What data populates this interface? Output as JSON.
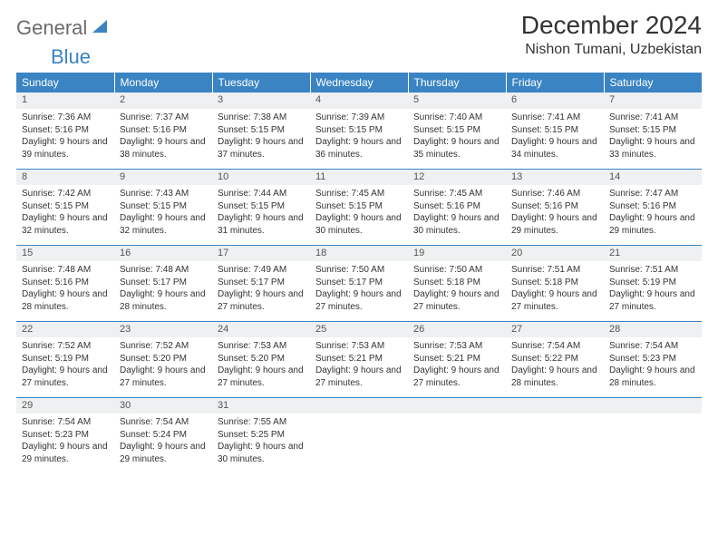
{
  "logo": {
    "word1": "General",
    "word2": "Blue"
  },
  "title": "December 2024",
  "location": "Nishon Tumani, Uzbekistan",
  "colors": {
    "header_bg": "#3a84c4",
    "header_text": "#ffffff",
    "daynum_bg": "#eef0f1",
    "border": "#3a84c4",
    "text": "#333333",
    "logo_gray": "#6b6b6b",
    "logo_blue": "#3a84c4"
  },
  "typography": {
    "title_fontsize": 28,
    "location_fontsize": 16,
    "dayheader_fontsize": 12,
    "daynum_fontsize": 11,
    "cell_fontsize": 10
  },
  "day_headers": [
    "Sunday",
    "Monday",
    "Tuesday",
    "Wednesday",
    "Thursday",
    "Friday",
    "Saturday"
  ],
  "weeks": [
    [
      {
        "n": "1",
        "sunrise": "Sunrise: 7:36 AM",
        "sunset": "Sunset: 5:16 PM",
        "daylight": "Daylight: 9 hours and 39 minutes."
      },
      {
        "n": "2",
        "sunrise": "Sunrise: 7:37 AM",
        "sunset": "Sunset: 5:16 PM",
        "daylight": "Daylight: 9 hours and 38 minutes."
      },
      {
        "n": "3",
        "sunrise": "Sunrise: 7:38 AM",
        "sunset": "Sunset: 5:15 PM",
        "daylight": "Daylight: 9 hours and 37 minutes."
      },
      {
        "n": "4",
        "sunrise": "Sunrise: 7:39 AM",
        "sunset": "Sunset: 5:15 PM",
        "daylight": "Daylight: 9 hours and 36 minutes."
      },
      {
        "n": "5",
        "sunrise": "Sunrise: 7:40 AM",
        "sunset": "Sunset: 5:15 PM",
        "daylight": "Daylight: 9 hours and 35 minutes."
      },
      {
        "n": "6",
        "sunrise": "Sunrise: 7:41 AM",
        "sunset": "Sunset: 5:15 PM",
        "daylight": "Daylight: 9 hours and 34 minutes."
      },
      {
        "n": "7",
        "sunrise": "Sunrise: 7:41 AM",
        "sunset": "Sunset: 5:15 PM",
        "daylight": "Daylight: 9 hours and 33 minutes."
      }
    ],
    [
      {
        "n": "8",
        "sunrise": "Sunrise: 7:42 AM",
        "sunset": "Sunset: 5:15 PM",
        "daylight": "Daylight: 9 hours and 32 minutes."
      },
      {
        "n": "9",
        "sunrise": "Sunrise: 7:43 AM",
        "sunset": "Sunset: 5:15 PM",
        "daylight": "Daylight: 9 hours and 32 minutes."
      },
      {
        "n": "10",
        "sunrise": "Sunrise: 7:44 AM",
        "sunset": "Sunset: 5:15 PM",
        "daylight": "Daylight: 9 hours and 31 minutes."
      },
      {
        "n": "11",
        "sunrise": "Sunrise: 7:45 AM",
        "sunset": "Sunset: 5:15 PM",
        "daylight": "Daylight: 9 hours and 30 minutes."
      },
      {
        "n": "12",
        "sunrise": "Sunrise: 7:45 AM",
        "sunset": "Sunset: 5:16 PM",
        "daylight": "Daylight: 9 hours and 30 minutes."
      },
      {
        "n": "13",
        "sunrise": "Sunrise: 7:46 AM",
        "sunset": "Sunset: 5:16 PM",
        "daylight": "Daylight: 9 hours and 29 minutes."
      },
      {
        "n": "14",
        "sunrise": "Sunrise: 7:47 AM",
        "sunset": "Sunset: 5:16 PM",
        "daylight": "Daylight: 9 hours and 29 minutes."
      }
    ],
    [
      {
        "n": "15",
        "sunrise": "Sunrise: 7:48 AM",
        "sunset": "Sunset: 5:16 PM",
        "daylight": "Daylight: 9 hours and 28 minutes."
      },
      {
        "n": "16",
        "sunrise": "Sunrise: 7:48 AM",
        "sunset": "Sunset: 5:17 PM",
        "daylight": "Daylight: 9 hours and 28 minutes."
      },
      {
        "n": "17",
        "sunrise": "Sunrise: 7:49 AM",
        "sunset": "Sunset: 5:17 PM",
        "daylight": "Daylight: 9 hours and 27 minutes."
      },
      {
        "n": "18",
        "sunrise": "Sunrise: 7:50 AM",
        "sunset": "Sunset: 5:17 PM",
        "daylight": "Daylight: 9 hours and 27 minutes."
      },
      {
        "n": "19",
        "sunrise": "Sunrise: 7:50 AM",
        "sunset": "Sunset: 5:18 PM",
        "daylight": "Daylight: 9 hours and 27 minutes."
      },
      {
        "n": "20",
        "sunrise": "Sunrise: 7:51 AM",
        "sunset": "Sunset: 5:18 PM",
        "daylight": "Daylight: 9 hours and 27 minutes."
      },
      {
        "n": "21",
        "sunrise": "Sunrise: 7:51 AM",
        "sunset": "Sunset: 5:19 PM",
        "daylight": "Daylight: 9 hours and 27 minutes."
      }
    ],
    [
      {
        "n": "22",
        "sunrise": "Sunrise: 7:52 AM",
        "sunset": "Sunset: 5:19 PM",
        "daylight": "Daylight: 9 hours and 27 minutes."
      },
      {
        "n": "23",
        "sunrise": "Sunrise: 7:52 AM",
        "sunset": "Sunset: 5:20 PM",
        "daylight": "Daylight: 9 hours and 27 minutes."
      },
      {
        "n": "24",
        "sunrise": "Sunrise: 7:53 AM",
        "sunset": "Sunset: 5:20 PM",
        "daylight": "Daylight: 9 hours and 27 minutes."
      },
      {
        "n": "25",
        "sunrise": "Sunrise: 7:53 AM",
        "sunset": "Sunset: 5:21 PM",
        "daylight": "Daylight: 9 hours and 27 minutes."
      },
      {
        "n": "26",
        "sunrise": "Sunrise: 7:53 AM",
        "sunset": "Sunset: 5:21 PM",
        "daylight": "Daylight: 9 hours and 27 minutes."
      },
      {
        "n": "27",
        "sunrise": "Sunrise: 7:54 AM",
        "sunset": "Sunset: 5:22 PM",
        "daylight": "Daylight: 9 hours and 28 minutes."
      },
      {
        "n": "28",
        "sunrise": "Sunrise: 7:54 AM",
        "sunset": "Sunset: 5:23 PM",
        "daylight": "Daylight: 9 hours and 28 minutes."
      }
    ],
    [
      {
        "n": "29",
        "sunrise": "Sunrise: 7:54 AM",
        "sunset": "Sunset: 5:23 PM",
        "daylight": "Daylight: 9 hours and 29 minutes."
      },
      {
        "n": "30",
        "sunrise": "Sunrise: 7:54 AM",
        "sunset": "Sunset: 5:24 PM",
        "daylight": "Daylight: 9 hours and 29 minutes."
      },
      {
        "n": "31",
        "sunrise": "Sunrise: 7:55 AM",
        "sunset": "Sunset: 5:25 PM",
        "daylight": "Daylight: 9 hours and 30 minutes."
      },
      null,
      null,
      null,
      null
    ]
  ]
}
